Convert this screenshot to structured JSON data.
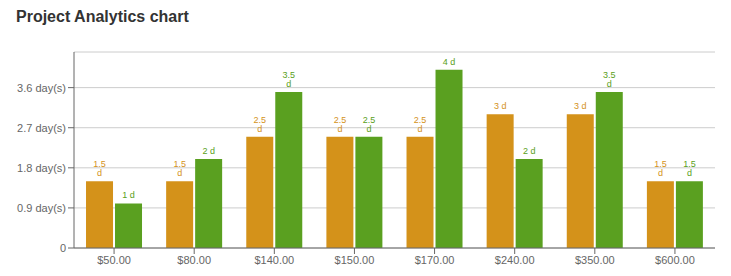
{
  "chart_data": {
    "type": "bar",
    "title": "Project Analytics chart",
    "categories": [
      "$50.00",
      "$80.00",
      "$140.00",
      "$150.00",
      "$170.00",
      "$240.00",
      "$350.00",
      "$600.00"
    ],
    "series": [
      {
        "color": "#D4921A",
        "values": [
          1.5,
          1.5,
          2.5,
          2.5,
          2.5,
          3.0,
          3.0,
          1.5
        ],
        "value_labels": [
          "1.5 d",
          "1.5 d",
          "2.5 d",
          "2.5 d",
          "2.5 d",
          "3 d",
          "3 d",
          "1.5 d"
        ]
      },
      {
        "color": "#5AA020",
        "values": [
          1.0,
          2.0,
          3.5,
          2.5,
          4.0,
          2.0,
          3.5,
          1.5
        ],
        "value_labels": [
          "1 d",
          "2 d",
          "3.5 d",
          "2.5 d",
          "4 d",
          "2 d",
          "3.5 d",
          "1.5 d"
        ]
      }
    ],
    "ylim": [
      0,
      4.4
    ],
    "yticks": [
      0,
      {
        "value": 0.9,
        "label": "0.9 day(s)"
      },
      {
        "value": 1.8,
        "label": "1.8 day(s)"
      },
      {
        "value": 2.7,
        "label": "2.7 day(s)"
      },
      {
        "value": 3.6,
        "label": "3.6 day(s)"
      }
    ],
    "grid": true,
    "data_labels": true
  }
}
